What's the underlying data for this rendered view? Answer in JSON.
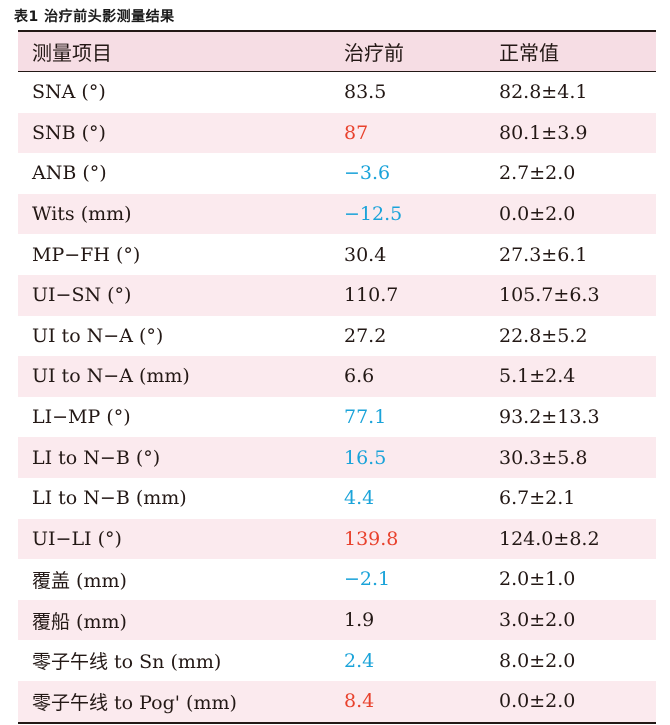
{
  "caption": "表1  治疗前头影测量结果",
  "colors": {
    "normal": "#231815",
    "red": "#e8412c",
    "blue": "#1aa3d9",
    "header_bg": "#f6dde4",
    "stripe_bg": "#fbeaee"
  },
  "headers": [
    "测量项目",
    "治疗前",
    "正常值"
  ],
  "rows": [
    {
      "item": "SNA (°)",
      "before": "83.5",
      "before_color": "normal",
      "normal": "82.8±4.1"
    },
    {
      "item": "SNB (°)",
      "before": "87",
      "before_color": "red",
      "normal": "80.1±3.9"
    },
    {
      "item": "ANB (°)",
      "before": "−3.6",
      "before_color": "blue",
      "normal": "2.7±2.0"
    },
    {
      "item": "Wits (mm)",
      "before": "−12.5",
      "before_color": "blue",
      "normal": "0.0±2.0"
    },
    {
      "item": "MP−FH (°)",
      "before": "30.4",
      "before_color": "normal",
      "normal": "27.3±6.1"
    },
    {
      "item": "UI−SN (°)",
      "before": "110.7",
      "before_color": "normal",
      "normal": "105.7±6.3"
    },
    {
      "item": "UI to N−A (°)",
      "before": "27.2",
      "before_color": "normal",
      "normal": "22.8±5.2"
    },
    {
      "item": "UI to N−A (mm)",
      "before": "6.6",
      "before_color": "normal",
      "normal": "5.1±2.4"
    },
    {
      "item": "LI−MP (°)",
      "before": "77.1",
      "before_color": "blue",
      "normal": "93.2±13.3"
    },
    {
      "item": "LI to N−B (°)",
      "before": "16.5",
      "before_color": "blue",
      "normal": "30.3±5.8"
    },
    {
      "item": "LI to N−B (mm)",
      "before": "4.4",
      "before_color": "blue",
      "normal": "6.7±2.1"
    },
    {
      "item": "UI−LI (°)",
      "before": "139.8",
      "before_color": "red",
      "normal": "124.0±8.2"
    },
    {
      "item": "覆盖 (mm)",
      "before": "−2.1",
      "before_color": "blue",
      "normal": "2.0±1.0"
    },
    {
      "item": "覆船 (mm)",
      "before": "1.9",
      "before_color": "normal",
      "normal": "3.0±2.0"
    },
    {
      "item": "零子午线 to Sn (mm)",
      "before": "2.4",
      "before_color": "blue",
      "normal": "8.0±2.0"
    },
    {
      "item": "零子午线 to Pog' (mm)",
      "before": "8.4",
      "before_color": "red",
      "normal": "0.0±2.0"
    }
  ]
}
